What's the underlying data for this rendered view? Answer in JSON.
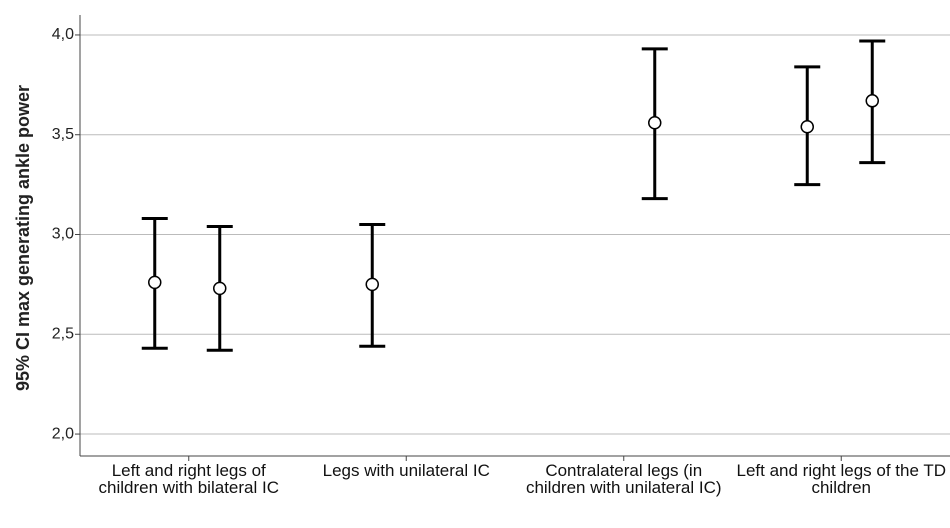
{
  "chart_data": {
    "type": "errorbar",
    "y_label": "95% CI max generating ankle power",
    "categories": [
      "Left and right legs of children with bilateral IC",
      "Legs with unilateral IC",
      "Contralateral legs (in children with unilateral IC)",
      "Left and right legs of the TD children"
    ],
    "series": [
      {
        "color": "#000000",
        "values": [
          2.76,
          2.75,
          null,
          3.54
        ],
        "lower": [
          2.43,
          2.44,
          null,
          3.25
        ],
        "upper": [
          3.08,
          3.05,
          null,
          3.84
        ]
      },
      {
        "color": "#000000",
        "values": [
          2.73,
          null,
          3.56,
          3.67
        ],
        "lower": [
          2.42,
          null,
          3.18,
          3.36
        ],
        "upper": [
          3.04,
          null,
          3.93,
          3.97
        ]
      }
    ],
    "ylim": [
      1.89,
      4.1
    ],
    "yticks": [
      {
        "value": 2.0,
        "label": "2,0"
      },
      {
        "value": 2.5,
        "label": "2,5"
      },
      {
        "value": 3.0,
        "label": "3,0"
      },
      {
        "value": 3.5,
        "label": "3,5"
      },
      {
        "value": 4.0,
        "label": "4,0"
      }
    ],
    "grid": true
  }
}
